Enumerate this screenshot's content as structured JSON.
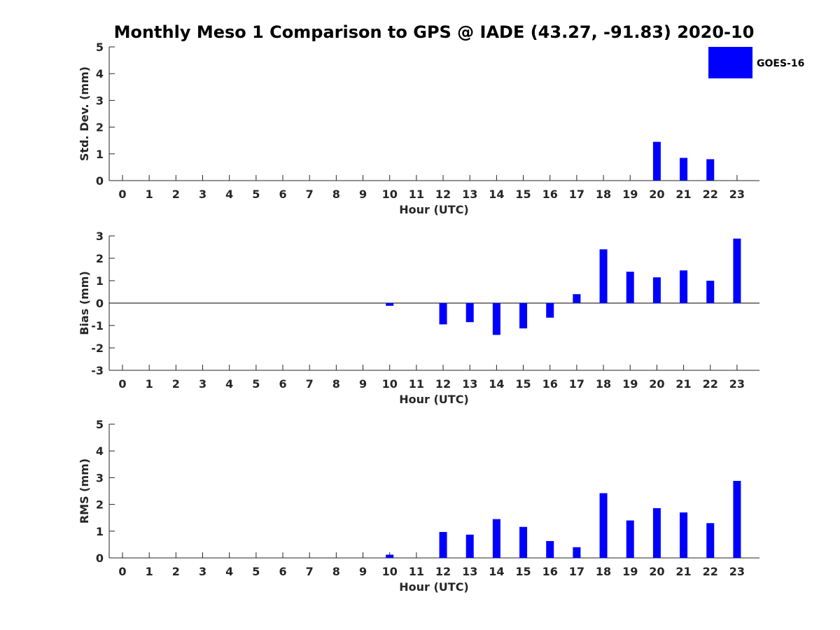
{
  "title": "Monthly Meso 1 Comparison to GPS @ IADE (43.27, -91.83) 2020-10",
  "legend": {
    "label": "GOES-16",
    "color": "#0000ff",
    "placement": "top-right"
  },
  "chart_data": [
    {
      "type": "bar",
      "name": "std-dev",
      "categories": [
        "0",
        "1",
        "2",
        "3",
        "4",
        "5",
        "6",
        "7",
        "8",
        "9",
        "10",
        "11",
        "12",
        "13",
        "14",
        "15",
        "16",
        "17",
        "18",
        "19",
        "20",
        "21",
        "22",
        "23"
      ],
      "values": [
        null,
        null,
        null,
        null,
        null,
        null,
        null,
        null,
        null,
        null,
        null,
        null,
        null,
        null,
        null,
        null,
        null,
        null,
        null,
        null,
        1.45,
        0.85,
        0.8,
        null
      ],
      "xlabel": "Hour (UTC)",
      "ylabel": "Std. Dev. (mm)",
      "ylim": [
        0,
        5
      ],
      "yticks": [
        "0",
        "1",
        "2",
        "3",
        "4",
        "5"
      ],
      "zero_line": false,
      "legend": true
    },
    {
      "type": "bar",
      "name": "bias",
      "categories": [
        "0",
        "1",
        "2",
        "3",
        "4",
        "5",
        "6",
        "7",
        "8",
        "9",
        "10",
        "11",
        "12",
        "13",
        "14",
        "15",
        "16",
        "17",
        "18",
        "19",
        "20",
        "21",
        "22",
        "23"
      ],
      "values": [
        null,
        null,
        null,
        null,
        null,
        null,
        null,
        null,
        null,
        null,
        -0.12,
        null,
        -0.95,
        -0.85,
        -1.42,
        -1.13,
        -0.65,
        0.4,
        2.4,
        1.4,
        1.15,
        1.46,
        1.0,
        2.88
      ],
      "xlabel": "Hour (UTC)",
      "ylabel": "Bias (mm)",
      "ylim": [
        -3,
        3
      ],
      "yticks": [
        "-3",
        "-2",
        "-1",
        "0",
        "1",
        "2",
        "3"
      ],
      "zero_line": true,
      "legend": false
    },
    {
      "type": "bar",
      "name": "rms",
      "categories": [
        "0",
        "1",
        "2",
        "3",
        "4",
        "5",
        "6",
        "7",
        "8",
        "9",
        "10",
        "11",
        "12",
        "13",
        "14",
        "15",
        "16",
        "17",
        "18",
        "19",
        "20",
        "21",
        "22",
        "23"
      ],
      "values": [
        null,
        null,
        null,
        null,
        null,
        null,
        null,
        null,
        null,
        null,
        0.12,
        null,
        0.97,
        0.87,
        1.45,
        1.16,
        0.63,
        0.4,
        2.42,
        1.4,
        1.86,
        1.7,
        1.3,
        2.88
      ],
      "xlabel": "Hour (UTC)",
      "ylabel": "RMS (mm)",
      "ylim": [
        0,
        5
      ],
      "yticks": [
        "0",
        "1",
        "2",
        "3",
        "4",
        "5"
      ],
      "zero_line": false,
      "legend": false
    }
  ]
}
